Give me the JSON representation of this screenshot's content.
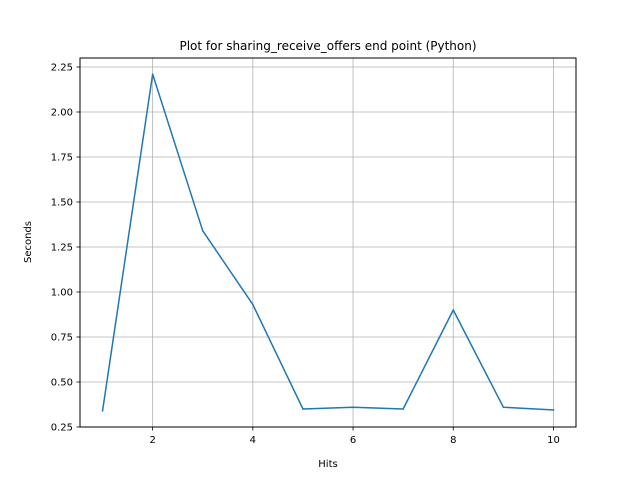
{
  "chart_data": {
    "type": "line",
    "title": "Plot for sharing_receive_offers end point (Python)",
    "xlabel": "Hits",
    "ylabel": "Seconds",
    "x": [
      1,
      2,
      3,
      4,
      5,
      6,
      7,
      8,
      9,
      10
    ],
    "series": [
      {
        "name": "Seconds",
        "color": "#1f77b4",
        "values": [
          0.34,
          2.21,
          1.34,
          0.93,
          0.35,
          0.36,
          0.35,
          0.9,
          0.36,
          0.345
        ]
      }
    ],
    "xlim": [
      0.55,
      10.45
    ],
    "ylim": [
      0.25,
      2.3
    ],
    "xticks": [
      2,
      4,
      6,
      8,
      10
    ],
    "xtick_labels": [
      "2",
      "4",
      "6",
      "8",
      "10"
    ],
    "yticks": [
      0.25,
      0.5,
      0.75,
      1.0,
      1.25,
      1.5,
      1.75,
      2.0,
      2.25
    ],
    "ytick_labels": [
      "0.25",
      "0.50",
      "0.75",
      "1.00",
      "1.25",
      "1.50",
      "1.75",
      "2.00",
      "2.25"
    ],
    "grid": true,
    "grid_color": "#b0b0b0",
    "axes_color": "#000000"
  }
}
